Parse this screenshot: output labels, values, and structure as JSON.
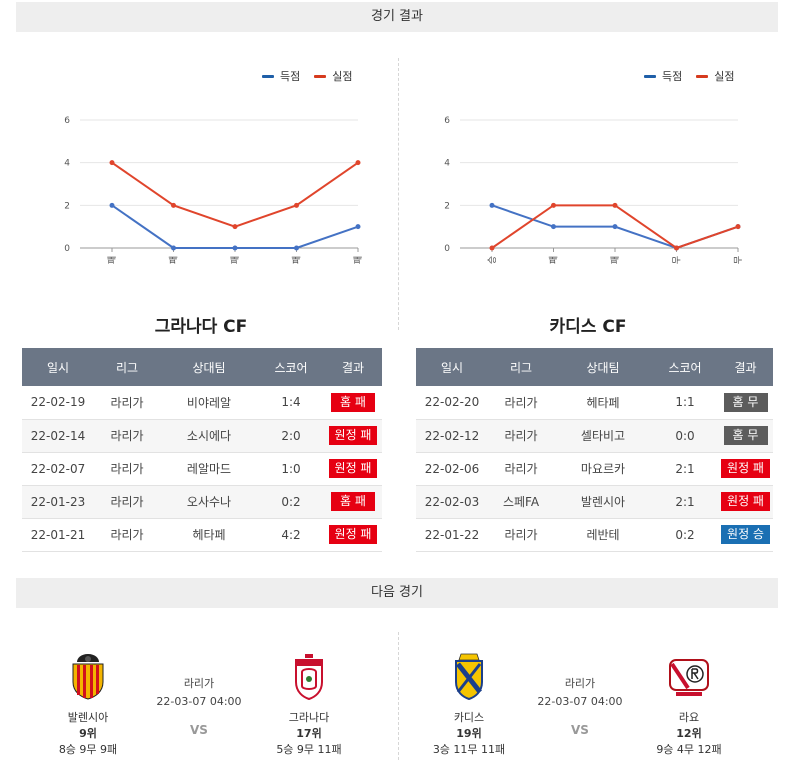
{
  "header_results": "경기 결과",
  "header_next": "다음 경기",
  "legend": {
    "scored": "득점",
    "conceded": "실점"
  },
  "colors": {
    "scored": "#4472c4",
    "conceded": "#e0452c",
    "lose": "#e60012",
    "draw": "#5c5c5c",
    "win": "#1a6fb3"
  },
  "teams": [
    {
      "name": "그라나다 CF"
    },
    {
      "name": "카디스 CF"
    }
  ],
  "chart_data": [
    {
      "type": "line",
      "categories": [
        "패",
        "패",
        "패",
        "패",
        "패"
      ],
      "ylim": [
        0,
        6
      ],
      "yticks": [
        "0",
        "2",
        "4",
        "6"
      ],
      "series": [
        {
          "name": "득점",
          "values": [
            2,
            0,
            0,
            0,
            1
          ]
        },
        {
          "name": "실점",
          "values": [
            4,
            2,
            1,
            2,
            4
          ]
        }
      ]
    },
    {
      "type": "line",
      "categories": [
        "승",
        "패",
        "패",
        "무",
        "무"
      ],
      "ylim": [
        0,
        6
      ],
      "yticks": [
        "0",
        "2",
        "4",
        "6"
      ],
      "series": [
        {
          "name": "득점",
          "values": [
            2,
            1,
            1,
            0,
            1
          ]
        },
        {
          "name": "실점",
          "values": [
            0,
            2,
            2,
            0,
            1
          ]
        }
      ]
    }
  ],
  "table_headers": [
    "일시",
    "리그",
    "상대팀",
    "스코어",
    "결과"
  ],
  "tables": [
    {
      "rows": [
        {
          "date": "22-02-19",
          "league": "라리가",
          "opponent": "비야레알",
          "score": "1:4",
          "result": "홈 패",
          "kind": "lose"
        },
        {
          "date": "22-02-14",
          "league": "라리가",
          "opponent": "소시에다",
          "score": "2:0",
          "result": "원정 패",
          "kind": "lose"
        },
        {
          "date": "22-02-07",
          "league": "라리가",
          "opponent": "레알마드",
          "score": "1:0",
          "result": "원정 패",
          "kind": "lose"
        },
        {
          "date": "22-01-23",
          "league": "라리가",
          "opponent": "오사수나",
          "score": "0:2",
          "result": "홈 패",
          "kind": "lose"
        },
        {
          "date": "22-01-21",
          "league": "라리가",
          "opponent": "헤타페",
          "score": "4:2",
          "result": "원정 패",
          "kind": "lose"
        }
      ]
    },
    {
      "rows": [
        {
          "date": "22-02-20",
          "league": "라리가",
          "opponent": "헤타페",
          "score": "1:1",
          "result": "홈 무",
          "kind": "draw"
        },
        {
          "date": "22-02-12",
          "league": "라리가",
          "opponent": "셀타비고",
          "score": "0:0",
          "result": "홈 무",
          "kind": "draw"
        },
        {
          "date": "22-02-06",
          "league": "라리가",
          "opponent": "마요르카",
          "score": "2:1",
          "result": "원정 패",
          "kind": "lose"
        },
        {
          "date": "22-02-03",
          "league": "스페FA",
          "opponent": "발렌시아",
          "score": "2:1",
          "result": "원정 패",
          "kind": "lose"
        },
        {
          "date": "22-01-22",
          "league": "라리가",
          "opponent": "레반테",
          "score": "0:2",
          "result": "원정 승",
          "kind": "win"
        }
      ]
    }
  ],
  "next_matches": [
    {
      "league": "라리가",
      "datetime": "22-03-07 04:00",
      "vs": "VS",
      "home": {
        "name": "발렌시아",
        "rank": "9위",
        "record": "8승 9무 9패",
        "crest": "valencia-crest-icon"
      },
      "away": {
        "name": "그라나다",
        "rank": "17위",
        "record": "5승 9무 11패",
        "crest": "granada-crest-icon"
      }
    },
    {
      "league": "라리가",
      "datetime": "22-03-07 04:00",
      "vs": "VS",
      "home": {
        "name": "카디스",
        "rank": "19위",
        "record": "3승 11무 11패",
        "crest": "cadiz-crest-icon"
      },
      "away": {
        "name": "라요",
        "rank": "12위",
        "record": "9승 4무 12패",
        "crest": "rayo-crest-icon"
      }
    }
  ]
}
